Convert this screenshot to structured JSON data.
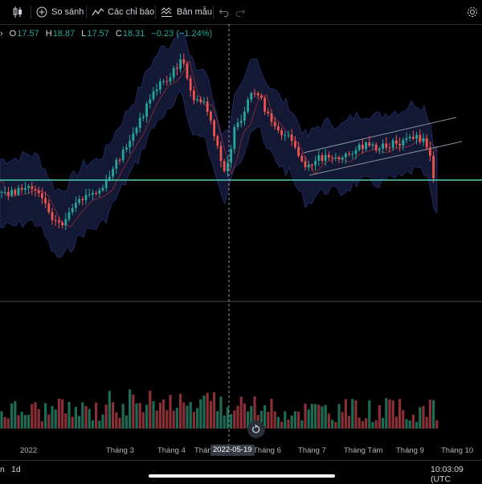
{
  "toolbar": {
    "compare_label": "So sánh",
    "indicators_label": "Các chỉ báo",
    "templates_label": "Bản mẫu"
  },
  "ohlc": {
    "o_key": "O",
    "o_val": "17.57",
    "h_key": "H",
    "h_val": "18.87",
    "l_key": "L",
    "l_val": "17.57",
    "c_key": "C",
    "c_val": "18.31",
    "change": "−0.23 (−1.24%)"
  },
  "crosshair": {
    "date": "2022-05-19"
  },
  "bottom": {
    "interval_a": "n",
    "interval_b": "1d",
    "time": "10:03:09 (UTC"
  },
  "colors": {
    "up": "#26a69a",
    "down": "#ef5350",
    "band": "#1a2046",
    "support": "#4dd0b1",
    "channel": "#8a8f9c"
  },
  "chart_data": {
    "type": "candlestick",
    "x_ticks": [
      "2022",
      "Tháng 3",
      "Tháng 4",
      "Tháng 5",
      "Tháng 6",
      "Tháng 7",
      "Tháng Tám",
      "Tháng 9",
      "Tháng 10"
    ],
    "indicators": [
      "Bollinger Bands",
      "Volume"
    ],
    "support_line": true,
    "rising_channel": true,
    "last": {
      "open": 17.57,
      "high": 18.87,
      "low": 17.57,
      "close": 18.31
    }
  }
}
